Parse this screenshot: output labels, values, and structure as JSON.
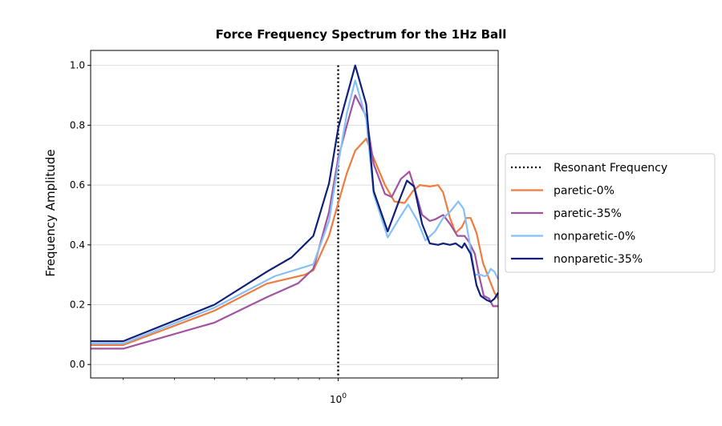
{
  "chart_data": {
    "type": "line",
    "title": "Force Frequency Spectrum for the 1Hz Ball",
    "xlabel": "",
    "ylabel": "Frequency Amplitude",
    "x_scale": "log",
    "xlim": [
      0.25,
      2.45
    ],
    "ylim": [
      -0.045,
      1.05
    ],
    "grid": "horizontal",
    "legend_position": "outside-right",
    "x_ticks": [
      {
        "value": 1.0,
        "label": "10^0"
      }
    ],
    "y_ticks": [
      {
        "value": 0.0,
        "label": "0.0"
      },
      {
        "value": 0.2,
        "label": "0.2"
      },
      {
        "value": 0.4,
        "label": "0.4"
      },
      {
        "value": 0.6,
        "label": "0.6"
      },
      {
        "value": 0.8,
        "label": "0.8"
      },
      {
        "value": 1.0,
        "label": "1.0"
      }
    ],
    "reference_line": {
      "name": "Resonant Frequency",
      "x": 1.0,
      "color": "#000000",
      "style": "dotted"
    },
    "series": [
      {
        "name": "paretic-0%",
        "color": "#f07b3f",
        "points": [
          [
            0.25,
            0.065
          ],
          [
            0.3,
            0.065
          ],
          [
            0.5,
            0.18
          ],
          [
            0.67,
            0.27
          ],
          [
            0.83,
            0.3
          ],
          [
            0.87,
            0.315
          ],
          [
            0.95,
            0.43
          ],
          [
            1.0,
            0.54
          ],
          [
            1.05,
            0.64
          ],
          [
            1.1,
            0.715
          ],
          [
            1.17,
            0.755
          ],
          [
            1.22,
            0.69
          ],
          [
            1.3,
            0.6
          ],
          [
            1.37,
            0.545
          ],
          [
            1.45,
            0.54
          ],
          [
            1.52,
            0.58
          ],
          [
            1.58,
            0.6
          ],
          [
            1.67,
            0.595
          ],
          [
            1.75,
            0.6
          ],
          [
            1.8,
            0.575
          ],
          [
            1.87,
            0.49
          ],
          [
            1.93,
            0.44
          ],
          [
            2.0,
            0.46
          ],
          [
            2.05,
            0.49
          ],
          [
            2.1,
            0.49
          ],
          [
            2.17,
            0.44
          ],
          [
            2.25,
            0.34
          ],
          [
            2.33,
            0.285
          ],
          [
            2.4,
            0.24
          ],
          [
            2.45,
            0.22
          ]
        ]
      },
      {
        "name": "paretic-35%",
        "color": "#a1539f",
        "points": [
          [
            0.25,
            0.053
          ],
          [
            0.3,
            0.053
          ],
          [
            0.5,
            0.14
          ],
          [
            0.67,
            0.225
          ],
          [
            0.8,
            0.272
          ],
          [
            0.87,
            0.32
          ],
          [
            0.95,
            0.51
          ],
          [
            1.0,
            0.69
          ],
          [
            1.05,
            0.8
          ],
          [
            1.1,
            0.9
          ],
          [
            1.17,
            0.83
          ],
          [
            1.22,
            0.67
          ],
          [
            1.3,
            0.57
          ],
          [
            1.35,
            0.56
          ],
          [
            1.42,
            0.62
          ],
          [
            1.49,
            0.645
          ],
          [
            1.53,
            0.595
          ],
          [
            1.6,
            0.5
          ],
          [
            1.67,
            0.48
          ],
          [
            1.72,
            0.485
          ],
          [
            1.8,
            0.5
          ],
          [
            1.87,
            0.47
          ],
          [
            1.95,
            0.43
          ],
          [
            2.03,
            0.43
          ],
          [
            2.08,
            0.41
          ],
          [
            2.15,
            0.37
          ],
          [
            2.2,
            0.3
          ],
          [
            2.26,
            0.23
          ],
          [
            2.33,
            0.22
          ],
          [
            2.38,
            0.195
          ],
          [
            2.45,
            0.195
          ]
        ]
      },
      {
        "name": "nonparetic-0%",
        "color": "#85c0f9",
        "points": [
          [
            0.25,
            0.07
          ],
          [
            0.3,
            0.07
          ],
          [
            0.5,
            0.19
          ],
          [
            0.7,
            0.295
          ],
          [
            0.87,
            0.335
          ],
          [
            0.95,
            0.48
          ],
          [
            1.0,
            0.67
          ],
          [
            1.05,
            0.84
          ],
          [
            1.1,
            0.95
          ],
          [
            1.17,
            0.82
          ],
          [
            1.22,
            0.57
          ],
          [
            1.32,
            0.425
          ],
          [
            1.41,
            0.49
          ],
          [
            1.48,
            0.535
          ],
          [
            1.56,
            0.48
          ],
          [
            1.63,
            0.415
          ],
          [
            1.72,
            0.445
          ],
          [
            1.8,
            0.49
          ],
          [
            1.87,
            0.51
          ],
          [
            1.96,
            0.545
          ],
          [
            2.02,
            0.52
          ],
          [
            2.08,
            0.42
          ],
          [
            2.15,
            0.3
          ],
          [
            2.22,
            0.3
          ],
          [
            2.27,
            0.295
          ],
          [
            2.31,
            0.3
          ],
          [
            2.35,
            0.32
          ],
          [
            2.4,
            0.31
          ],
          [
            2.45,
            0.285
          ]
        ]
      },
      {
        "name": "nonparetic-35%",
        "color": "#0f1f7a",
        "points": [
          [
            0.25,
            0.078
          ],
          [
            0.3,
            0.078
          ],
          [
            0.5,
            0.2
          ],
          [
            0.67,
            0.31
          ],
          [
            0.77,
            0.358
          ],
          [
            0.87,
            0.43
          ],
          [
            0.95,
            0.605
          ],
          [
            1.0,
            0.79
          ],
          [
            1.03,
            0.855
          ],
          [
            1.1,
            1.0
          ],
          [
            1.17,
            0.87
          ],
          [
            1.22,
            0.58
          ],
          [
            1.32,
            0.445
          ],
          [
            1.4,
            0.54
          ],
          [
            1.47,
            0.615
          ],
          [
            1.53,
            0.595
          ],
          [
            1.6,
            0.47
          ],
          [
            1.67,
            0.405
          ],
          [
            1.75,
            0.4
          ],
          [
            1.8,
            0.405
          ],
          [
            1.87,
            0.4
          ],
          [
            1.93,
            0.405
          ],
          [
            2.0,
            0.39
          ],
          [
            2.03,
            0.405
          ],
          [
            2.1,
            0.37
          ],
          [
            2.17,
            0.265
          ],
          [
            2.22,
            0.23
          ],
          [
            2.3,
            0.215
          ],
          [
            2.35,
            0.21
          ],
          [
            2.4,
            0.22
          ],
          [
            2.45,
            0.24
          ]
        ]
      }
    ]
  }
}
